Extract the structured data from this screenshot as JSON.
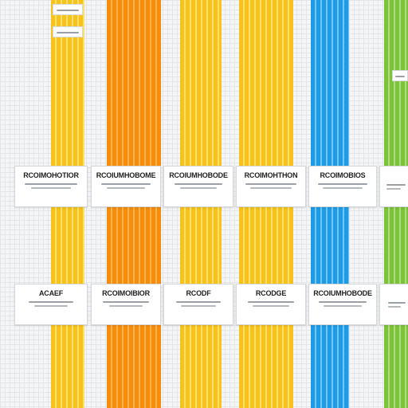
{
  "colors": {
    "yellow": "#f7c21b",
    "yellow_stripe": "#fde06a",
    "orange": "#f48c0c",
    "orange_stripe": "#fcb24a",
    "blue": "#1f9be6",
    "blue_stripe": "#70c6f5",
    "green": "#7cc23a",
    "green_stripe": "#b0dd7c"
  },
  "top_row": {
    "card_1": {
      "title": "RCOIMOHOTIOR"
    },
    "card_2": {
      "title": "RCOIUMHOBOME"
    },
    "card_3": {
      "title": "RCOIUMHOBODE"
    },
    "card_4": {
      "title": "RCOIMOHTHON"
    },
    "card_5": {
      "title": "RCOIMOBIOS"
    }
  },
  "bottom_row": {
    "card_1": {
      "title": "ACAEF"
    },
    "card_2": {
      "title": "RCOIMOIBIOR"
    },
    "card_3": {
      "title": "RCODF"
    },
    "card_4": {
      "title": "RCODGE"
    },
    "card_5": {
      "title": "RCOIUMHOBODE"
    }
  }
}
